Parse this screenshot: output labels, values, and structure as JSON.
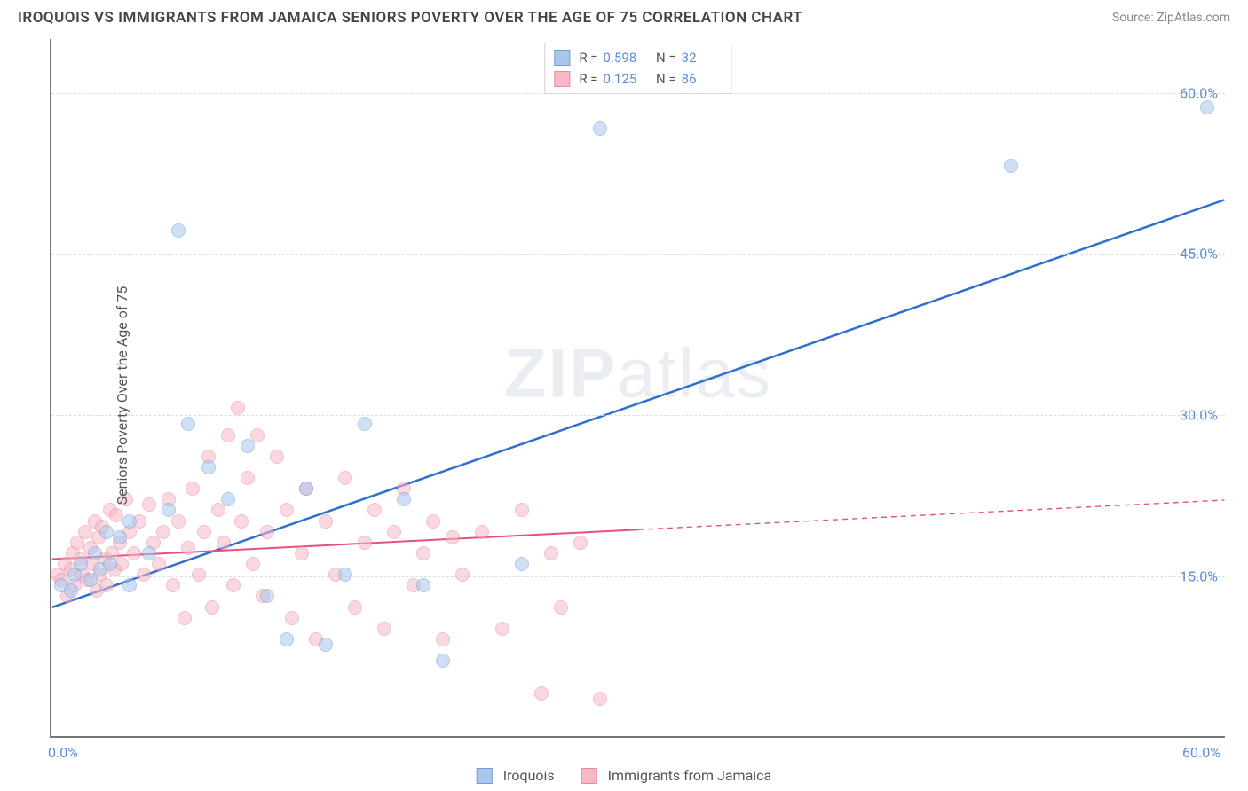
{
  "title": "IROQUOIS VS IMMIGRANTS FROM JAMAICA SENIORS POVERTY OVER THE AGE OF 75 CORRELATION CHART",
  "source": "Source: ZipAtlas.com",
  "watermark": "ZIPatlas",
  "chart": {
    "type": "scatter",
    "y_axis_title": "Seniors Poverty Over the Age of 75",
    "xlim": [
      0,
      60
    ],
    "ylim": [
      0,
      65
    ],
    "x_ticks": [
      {
        "v": 0,
        "label": "0.0%"
      },
      {
        "v": 60,
        "label": "60.0%"
      }
    ],
    "y_ticks": [
      {
        "v": 15,
        "label": "15.0%"
      },
      {
        "v": 30,
        "label": "30.0%"
      },
      {
        "v": 45,
        "label": "45.0%"
      },
      {
        "v": 60,
        "label": "60.0%"
      }
    ],
    "grid_color": "#dddddd",
    "background_color": "#ffffff",
    "axis_color": "#777777",
    "tick_label_color": "#5b8dd6",
    "marker_radius": 8,
    "marker_opacity": 0.55,
    "series": [
      {
        "name": "Iroquois",
        "color_fill": "#a9c7ec",
        "color_stroke": "#6f9dd8",
        "R": "0.598",
        "N": "32",
        "trend": {
          "x1": 0,
          "y1": 12,
          "x2": 60,
          "y2": 50,
          "stroke": "#2f6fd0",
          "width": 2.5,
          "dash": null,
          "solid_until_x": 60
        },
        "points": [
          [
            0.5,
            14
          ],
          [
            1,
            13.5
          ],
          [
            1.2,
            15
          ],
          [
            1.5,
            16
          ],
          [
            2,
            14.5
          ],
          [
            2.2,
            17
          ],
          [
            2.5,
            15.5
          ],
          [
            2.8,
            19
          ],
          [
            3,
            16
          ],
          [
            3.5,
            18.5
          ],
          [
            4,
            20
          ],
          [
            4,
            14
          ],
          [
            5,
            17
          ],
          [
            6,
            21
          ],
          [
            6.5,
            47
          ],
          [
            7,
            29
          ],
          [
            8,
            25
          ],
          [
            9,
            22
          ],
          [
            10,
            27
          ],
          [
            11,
            13
          ],
          [
            12,
            9
          ],
          [
            13,
            23
          ],
          [
            14,
            8.5
          ],
          [
            15,
            15
          ],
          [
            16,
            29
          ],
          [
            18,
            22
          ],
          [
            19,
            14
          ],
          [
            20,
            7
          ],
          [
            24,
            16
          ],
          [
            28,
            56.5
          ],
          [
            49,
            53
          ],
          [
            59,
            58.5
          ]
        ]
      },
      {
        "name": "Immigrants from Jamaica",
        "color_fill": "#f6b9c8",
        "color_stroke": "#e88aa3",
        "R": "0.125",
        "N": "86",
        "trend": {
          "x1": 0,
          "y1": 16.5,
          "x2": 60,
          "y2": 22,
          "stroke": "#e6517a",
          "width": 2,
          "dash": "6 5",
          "solid_until_x": 30
        },
        "points": [
          [
            0.3,
            15
          ],
          [
            0.5,
            14.5
          ],
          [
            0.7,
            16
          ],
          [
            0.8,
            13
          ],
          [
            1,
            15.5
          ],
          [
            1.1,
            17
          ],
          [
            1.2,
            14
          ],
          [
            1.3,
            18
          ],
          [
            1.5,
            16.5
          ],
          [
            1.6,
            15
          ],
          [
            1.7,
            19
          ],
          [
            1.8,
            14.5
          ],
          [
            2,
            17.5
          ],
          [
            2.1,
            16
          ],
          [
            2.2,
            20
          ],
          [
            2.3,
            13.5
          ],
          [
            2.4,
            18.5
          ],
          [
            2.5,
            15
          ],
          [
            2.6,
            19.5
          ],
          [
            2.7,
            16.5
          ],
          [
            2.8,
            14
          ],
          [
            3,
            21
          ],
          [
            3.1,
            17
          ],
          [
            3.2,
            15.5
          ],
          [
            3.3,
            20.5
          ],
          [
            3.5,
            18
          ],
          [
            3.6,
            16
          ],
          [
            3.8,
            22
          ],
          [
            4,
            19
          ],
          [
            4.2,
            17
          ],
          [
            4.5,
            20
          ],
          [
            4.7,
            15
          ],
          [
            5,
            21.5
          ],
          [
            5.2,
            18
          ],
          [
            5.5,
            16
          ],
          [
            5.7,
            19
          ],
          [
            6,
            22
          ],
          [
            6.2,
            14
          ],
          [
            6.5,
            20
          ],
          [
            6.8,
            11
          ],
          [
            7,
            17.5
          ],
          [
            7.2,
            23
          ],
          [
            7.5,
            15
          ],
          [
            7.8,
            19
          ],
          [
            8,
            26
          ],
          [
            8.2,
            12
          ],
          [
            8.5,
            21
          ],
          [
            8.8,
            18
          ],
          [
            9,
            28
          ],
          [
            9.3,
            14
          ],
          [
            9.5,
            30.5
          ],
          [
            9.7,
            20
          ],
          [
            10,
            24
          ],
          [
            10.3,
            16
          ],
          [
            10.5,
            28
          ],
          [
            10.8,
            13
          ],
          [
            11,
            19
          ],
          [
            11.5,
            26
          ],
          [
            12,
            21
          ],
          [
            12.3,
            11
          ],
          [
            12.8,
            17
          ],
          [
            13,
            23
          ],
          [
            13.5,
            9
          ],
          [
            14,
            20
          ],
          [
            14.5,
            15
          ],
          [
            15,
            24
          ],
          [
            15.5,
            12
          ],
          [
            16,
            18
          ],
          [
            16.5,
            21
          ],
          [
            17,
            10
          ],
          [
            17.5,
            19
          ],
          [
            18,
            23
          ],
          [
            18.5,
            14
          ],
          [
            19,
            17
          ],
          [
            19.5,
            20
          ],
          [
            20,
            9
          ],
          [
            20.5,
            18.5
          ],
          [
            21,
            15
          ],
          [
            22,
            19
          ],
          [
            23,
            10
          ],
          [
            24,
            21
          ],
          [
            25,
            4
          ],
          [
            25.5,
            17
          ],
          [
            26,
            12
          ],
          [
            27,
            18
          ],
          [
            28,
            3.5
          ]
        ]
      }
    ]
  },
  "legend": {
    "series1_label": "Iroquois",
    "series2_label": "Immigrants from Jamaica"
  }
}
